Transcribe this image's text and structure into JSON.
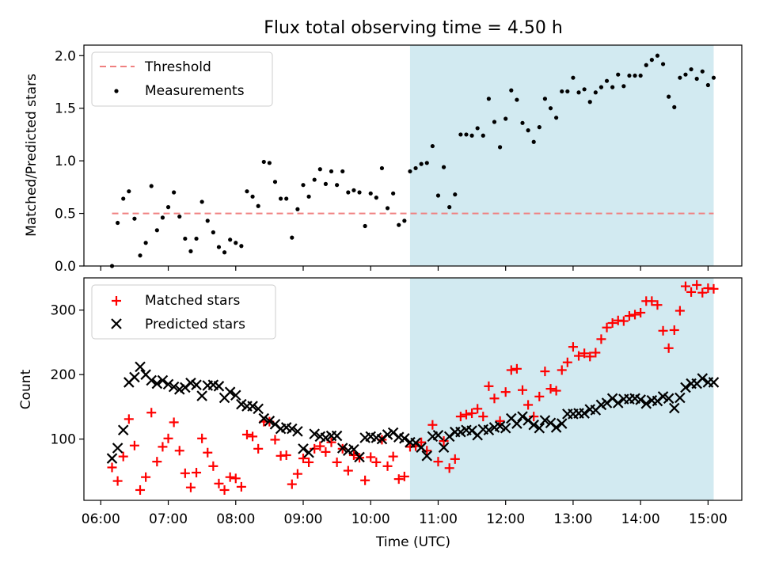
{
  "title": "Flux total observing time = 4.50 h",
  "colors": {
    "threshold": "#f08080",
    "measurement": "#000000",
    "matched": "#ff0000",
    "predicted": "#000000",
    "shade": "#add8e6"
  },
  "chart_data": [
    {
      "type": "scatter",
      "ylabel": "Matched/Predicted stars",
      "ylim": [
        0,
        2.1
      ],
      "yticks": [
        "0.0",
        "0.5",
        "1.0",
        "1.5",
        "2.0"
      ],
      "shaded_region": [
        "10:35",
        "15:05"
      ],
      "legend": {
        "position": "top-left",
        "entries": [
          "Threshold",
          "Measurements"
        ]
      },
      "series": [
        {
          "name": "Threshold",
          "kind": "hline",
          "y": 0.5,
          "x": [
            "06:10",
            "15:05"
          ]
        },
        {
          "name": "Measurements",
          "kind": "points",
          "x": [
            "06:10",
            "06:15",
            "06:20",
            "06:25",
            "06:30",
            "06:35",
            "06:40",
            "06:45",
            "06:50",
            "06:55",
            "07:00",
            "07:05",
            "07:10",
            "07:15",
            "07:20",
            "07:25",
            "07:30",
            "07:35",
            "07:40",
            "07:45",
            "07:50",
            "07:55",
            "08:00",
            "08:05",
            "08:10",
            "08:15",
            "08:20",
            "08:25",
            "08:30",
            "08:35",
            "08:40",
            "08:45",
            "08:50",
            "08:55",
            "09:00",
            "09:05",
            "09:10",
            "09:15",
            "09:20",
            "09:25",
            "09:30",
            "09:35",
            "09:40",
            "09:45",
            "09:50",
            "09:55",
            "10:00",
            "10:05",
            "10:10",
            "10:15",
            "10:20",
            "10:25",
            "10:30",
            "10:35",
            "10:40",
            "10:45",
            "10:50",
            "10:55",
            "11:00",
            "11:05",
            "11:10",
            "11:15",
            "11:20",
            "11:25",
            "11:30",
            "11:35",
            "11:40",
            "11:45",
            "11:50",
            "11:55",
            "12:00",
            "12:05",
            "12:10",
            "12:15",
            "12:20",
            "12:25",
            "12:30",
            "12:35",
            "12:40",
            "12:45",
            "12:50",
            "12:55",
            "13:00",
            "13:05",
            "13:10",
            "13:15",
            "13:20",
            "13:25",
            "13:30",
            "13:35",
            "13:40",
            "13:45",
            "13:50",
            "13:55",
            "14:00",
            "14:05",
            "14:10",
            "14:15",
            "14:20",
            "14:25",
            "14:30",
            "14:35",
            "14:40",
            "14:45",
            "14:50",
            "14:55",
            "15:00",
            "15:05"
          ],
          "values": [
            0.0,
            0.41,
            0.64,
            0.71,
            0.45,
            0.1,
            0.22,
            0.76,
            0.34,
            0.46,
            0.56,
            0.7,
            0.47,
            0.26,
            0.14,
            0.26,
            0.61,
            0.43,
            0.32,
            0.18,
            0.13,
            0.25,
            0.22,
            0.19,
            0.71,
            0.66,
            0.57,
            0.99,
            0.98,
            0.8,
            0.64,
            0.64,
            0.27,
            0.54,
            0.77,
            0.66,
            0.82,
            0.92,
            0.78,
            0.9,
            0.77,
            0.9,
            0.7,
            0.72,
            0.7,
            0.38,
            0.69,
            0.65,
            0.93,
            0.55,
            0.69,
            0.39,
            0.43,
            0.9,
            0.93,
            0.97,
            0.98,
            1.14,
            0.67,
            0.94,
            0.56,
            0.68,
            1.25,
            1.25,
            1.24,
            1.31,
            1.24,
            1.59,
            1.37,
            1.13,
            1.4,
            1.67,
            1.58,
            1.36,
            1.29,
            1.18,
            1.32,
            1.59,
            1.5,
            1.41,
            1.66,
            1.66,
            1.79,
            1.65,
            1.68,
            1.56,
            1.65,
            1.7,
            1.76,
            1.7,
            1.82,
            1.71,
            1.81,
            1.81,
            1.81,
            1.91,
            1.96,
            2.0,
            1.92,
            1.61,
            1.51,
            1.79,
            1.82,
            1.87,
            1.78,
            1.85,
            1.72,
            1.79
          ]
        }
      ]
    },
    {
      "type": "scatter",
      "ylabel": "Count",
      "xlabel": "Time (UTC)",
      "ylim": [
        5,
        350
      ],
      "yticks": [
        "100",
        "200",
        "300"
      ],
      "xticks": [
        "06:00",
        "07:00",
        "08:00",
        "09:00",
        "10:00",
        "11:00",
        "12:00",
        "13:00",
        "14:00",
        "15:00"
      ],
      "xlim": [
        "05:45",
        "15:30"
      ],
      "shaded_region": [
        "10:35",
        "15:05"
      ],
      "legend": {
        "position": "top-left",
        "entries": [
          "Matched stars",
          "Predicted stars"
        ]
      },
      "x": [
        "06:10",
        "06:15",
        "06:20",
        "06:25",
        "06:30",
        "06:35",
        "06:40",
        "06:45",
        "06:50",
        "06:55",
        "07:00",
        "07:05",
        "07:10",
        "07:15",
        "07:20",
        "07:25",
        "07:30",
        "07:35",
        "07:40",
        "07:45",
        "07:50",
        "07:55",
        "08:00",
        "08:05",
        "08:10",
        "08:15",
        "08:20",
        "08:25",
        "08:30",
        "08:35",
        "08:40",
        "08:45",
        "08:50",
        "08:55",
        "09:00",
        "09:05",
        "09:10",
        "09:15",
        "09:20",
        "09:25",
        "09:30",
        "09:35",
        "09:40",
        "09:45",
        "09:50",
        "09:55",
        "10:00",
        "10:05",
        "10:10",
        "10:15",
        "10:20",
        "10:25",
        "10:30",
        "10:35",
        "10:40",
        "10:45",
        "10:50",
        "10:55",
        "11:00",
        "11:05",
        "11:10",
        "11:15",
        "11:20",
        "11:25",
        "11:30",
        "11:35",
        "11:40",
        "11:45",
        "11:50",
        "11:55",
        "12:00",
        "12:05",
        "12:10",
        "12:15",
        "12:20",
        "12:25",
        "12:30",
        "12:35",
        "12:40",
        "12:45",
        "12:50",
        "12:55",
        "13:00",
        "13:05",
        "13:10",
        "13:15",
        "13:20",
        "13:25",
        "13:30",
        "13:35",
        "13:40",
        "13:45",
        "13:50",
        "13:55",
        "14:00",
        "14:05",
        "14:10",
        "14:15",
        "14:20",
        "14:25",
        "14:30",
        "14:35",
        "14:40",
        "14:45",
        "14:50",
        "14:55",
        "15:00",
        "15:05"
      ],
      "series": [
        {
          "name": "Matched stars",
          "marker": "plus",
          "values": [
            56,
            35,
            73,
            131,
            90,
            21,
            41,
            141,
            65,
            88,
            101,
            126,
            82,
            47,
            25,
            48,
            101,
            79,
            58,
            31,
            21,
            41,
            39,
            26,
            107,
            104,
            85,
            127,
            127,
            99,
            74,
            75,
            30,
            46,
            70,
            64,
            85,
            89,
            80,
            95,
            64,
            85,
            51,
            75,
            71,
            36,
            72,
            64,
            99,
            58,
            73,
            38,
            42,
            88,
            89,
            95,
            82,
            122,
            65,
            97,
            55,
            69,
            135,
            138,
            140,
            147,
            135,
            182,
            163,
            128,
            173,
            207,
            209,
            176,
            153,
            135,
            166,
            205,
            178,
            175,
            207,
            219,
            243,
            229,
            233,
            228,
            234,
            255,
            273,
            280,
            284,
            283,
            291,
            293,
            296,
            314,
            314,
            308,
            268,
            241,
            269,
            299,
            337,
            328,
            339,
            327,
            334,
            333
          ]
        },
        {
          "name": "Predicted stars",
          "marker": "x",
          "values": [
            70,
            86,
            114,
            188,
            196,
            212,
            200,
            191,
            186,
            191,
            185,
            181,
            177,
            180,
            187,
            184,
            167,
            183,
            184,
            182,
            164,
            173,
            168,
            154,
            151,
            151,
            147,
            132,
            128,
            123,
            116,
            118,
            116,
            112,
            85,
            79,
            108,
            104,
            102,
            105,
            105,
            86,
            82,
            84,
            72,
            102,
            104,
            102,
            100,
            107,
            110,
            103,
            101,
            95,
            94,
            87,
            74,
            104,
            106,
            87,
            104,
            111,
            111,
            114,
            113,
            106,
            115,
            114,
            118,
            120,
            117,
            132,
            124,
            135,
            129,
            122,
            117,
            129,
            125,
            118,
            124,
            139,
            139,
            140,
            140,
            146,
            145,
            153,
            156,
            163,
            156,
            162,
            162,
            163,
            161,
            155,
            160,
            159,
            166,
            163,
            148,
            164,
            180,
            186,
            186,
            194,
            188,
            188
          ]
        }
      ]
    }
  ]
}
